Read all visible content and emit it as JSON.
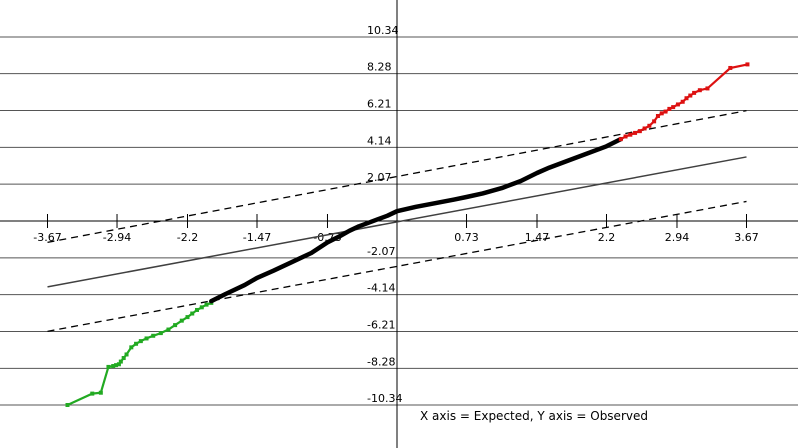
{
  "chart_data": {
    "type": "scatter",
    "caption": "X axis = Expected, Y axis = Observed",
    "xlabel": "Expected",
    "ylabel": "Observed",
    "x_ticks": [
      -3.67,
      -2.94,
      -2.2,
      -1.47,
      -0.73,
      0.73,
      1.47,
      2.2,
      2.94,
      3.67
    ],
    "x_tick_labels": [
      "-3.67",
      "-2.94",
      "-2.2",
      "-1.47",
      "-0.73",
      "0.73",
      "1.47",
      "2.2",
      "2.94",
      "3.67"
    ],
    "y_ticks": [
      10.34,
      8.28,
      6.21,
      4.14,
      2.07,
      -2.07,
      -4.14,
      -6.21,
      -8.28,
      -10.34
    ],
    "y_tick_labels": [
      "10.34",
      "8.28",
      "6.21",
      "4.14",
      "2.07",
      "-2.07",
      "-4.14",
      "-6.21",
      "-8.28",
      "-10.34"
    ],
    "xlim": [
      -4.1,
      4.2
    ],
    "ylim": [
      -13.0,
      13.1
    ],
    "grid": "horizontal",
    "colors": {
      "center": "#000000",
      "lower_tail": "#22aa22",
      "upper_tail": "#dd1111",
      "reference_line": "#404040",
      "band_line": "#000000",
      "grid": "#555555"
    },
    "reference_line": {
      "x": [
        -3.67,
        3.67
      ],
      "y": [
        -3.7,
        3.6
      ]
    },
    "confidence_band": [
      {
        "name": "upper",
        "x": [
          -3.67,
          3.67
        ],
        "y": [
          -1.2,
          6.2
        ]
      },
      {
        "name": "lower",
        "x": [
          -3.67,
          3.67
        ],
        "y": [
          -6.2,
          1.1
        ]
      }
    ],
    "series": [
      {
        "group": "lower-tail",
        "color": "#22aa22",
        "x": [
          -3.46,
          -3.2,
          -3.11,
          -3.03,
          -2.98,
          -2.95,
          -2.92,
          -2.9,
          -2.87,
          -2.84,
          -2.79,
          -2.74,
          -2.69,
          -2.63,
          -2.56,
          -2.48,
          -2.4,
          -2.33,
          -2.26,
          -2.2,
          -2.15,
          -2.1,
          -2.05,
          -2.0,
          -1.95
        ],
        "y": [
          -10.34,
          -9.7,
          -9.65,
          -8.2,
          -8.15,
          -8.1,
          -8.05,
          -7.9,
          -7.7,
          -7.5,
          -7.1,
          -6.9,
          -6.75,
          -6.6,
          -6.45,
          -6.3,
          -6.1,
          -5.85,
          -5.6,
          -5.4,
          -5.2,
          -5.0,
          -4.85,
          -4.7,
          -4.6
        ]
      },
      {
        "group": "center",
        "color": "#000000",
        "x": [
          -1.95,
          -1.8,
          -1.6,
          -1.47,
          -1.3,
          -1.1,
          -0.9,
          -0.73,
          -0.6,
          -0.5,
          -0.4,
          -0.3,
          -0.2,
          -0.1,
          0.0,
          0.2,
          0.4,
          0.6,
          0.73,
          0.9,
          1.1,
          1.3,
          1.47,
          1.6,
          1.8,
          2.0,
          2.2,
          2.35
        ],
        "y": [
          -4.5,
          -4.1,
          -3.6,
          -3.2,
          -2.8,
          -2.3,
          -1.8,
          -1.2,
          -0.85,
          -0.55,
          -0.3,
          -0.1,
          0.1,
          0.3,
          0.55,
          0.8,
          1.0,
          1.2,
          1.35,
          1.55,
          1.85,
          2.25,
          2.7,
          3.0,
          3.4,
          3.8,
          4.2,
          4.6
        ]
      },
      {
        "group": "upper-tail",
        "color": "#dd1111",
        "x": [
          2.35,
          2.4,
          2.45,
          2.5,
          2.55,
          2.6,
          2.65,
          2.7,
          2.74,
          2.78,
          2.82,
          2.86,
          2.9,
          2.95,
          3.0,
          3.04,
          3.08,
          3.12,
          3.18,
          3.26,
          3.5,
          3.68
        ],
        "y": [
          4.6,
          4.75,
          4.85,
          4.95,
          5.05,
          5.2,
          5.35,
          5.6,
          5.9,
          6.05,
          6.15,
          6.3,
          6.4,
          6.55,
          6.7,
          6.9,
          7.05,
          7.2,
          7.35,
          7.45,
          8.6,
          8.8
        ]
      }
    ]
  }
}
